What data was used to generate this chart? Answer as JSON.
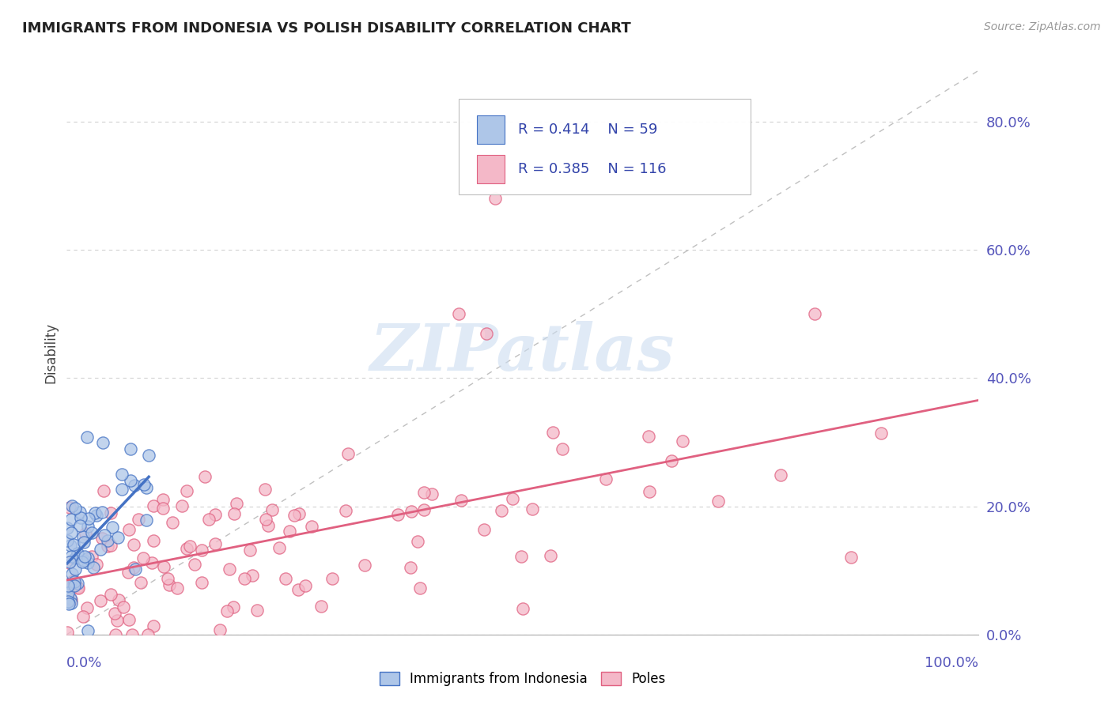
{
  "title": "IMMIGRANTS FROM INDONESIA VS POLISH DISABILITY CORRELATION CHART",
  "source": "Source: ZipAtlas.com",
  "ylabel": "Disability",
  "legend_entries": [
    {
      "label": "Immigrants from Indonesia",
      "R": 0.414,
      "N": 59,
      "color": "#aec6e8",
      "edge_color": "#4472c4",
      "line_color": "#4472c4"
    },
    {
      "label": "Poles",
      "R": 0.385,
      "N": 116,
      "color": "#f4b8c8",
      "edge_color": "#e06080",
      "line_color": "#e06080"
    }
  ],
  "background_color": "#ffffff",
  "grid_color": "#cccccc",
  "diagonal_color": "#b0b0b0",
  "title_color": "#222222",
  "axis_label_color": "#5555bb",
  "source_color": "#999999",
  "xlim": [
    0.0,
    1.0
  ],
  "ylim": [
    0.0,
    0.88
  ],
  "y_ticks": [
    0.0,
    0.2,
    0.4,
    0.6,
    0.8
  ],
  "marker_size": 120,
  "watermark_text": "ZIPatlas",
  "watermark_color": "#ccddf0",
  "watermark_alpha": 0.6
}
